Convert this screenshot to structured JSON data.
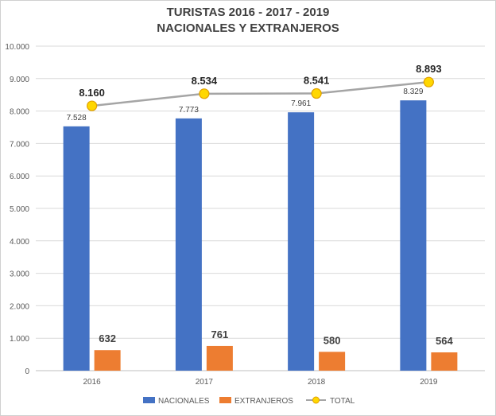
{
  "chart_data": {
    "type": "bar",
    "title_line1": "TURISTAS 2016 - 2017 - 2019",
    "title_line2": "NACIONALES Y EXTRANJEROS",
    "categories": [
      "2016",
      "2017",
      "2018",
      "2019"
    ],
    "series": [
      {
        "name": "NACIONALES",
        "kind": "bar",
        "color": "#4472c4",
        "values": [
          7528,
          7773,
          7961,
          8329
        ],
        "labels": [
          "7.528",
          "7.773",
          "7.961",
          "8.329"
        ]
      },
      {
        "name": "EXTRANJEROS",
        "kind": "bar",
        "color": "#ed7d31",
        "values": [
          632,
          761,
          580,
          564
        ],
        "labels": [
          "632",
          "761",
          "580",
          "564"
        ]
      },
      {
        "name": "TOTAL",
        "kind": "line",
        "color": "#a5a5a5",
        "marker_color": "#ffd700",
        "values": [
          8160,
          8534,
          8541,
          8893
        ],
        "labels": [
          "8.160",
          "8.534",
          "8.541",
          "8.893"
        ]
      }
    ],
    "ylim": [
      0,
      10000
    ],
    "yticks": [
      0,
      1000,
      2000,
      3000,
      4000,
      5000,
      6000,
      7000,
      8000,
      9000,
      10000
    ],
    "ytick_labels": [
      "0",
      "1.000",
      "2.000",
      "3.000",
      "4.000",
      "5.000",
      "6.000",
      "7.000",
      "8.000",
      "9.000",
      "10.000"
    ],
    "grid": true,
    "legend": "bottom"
  }
}
